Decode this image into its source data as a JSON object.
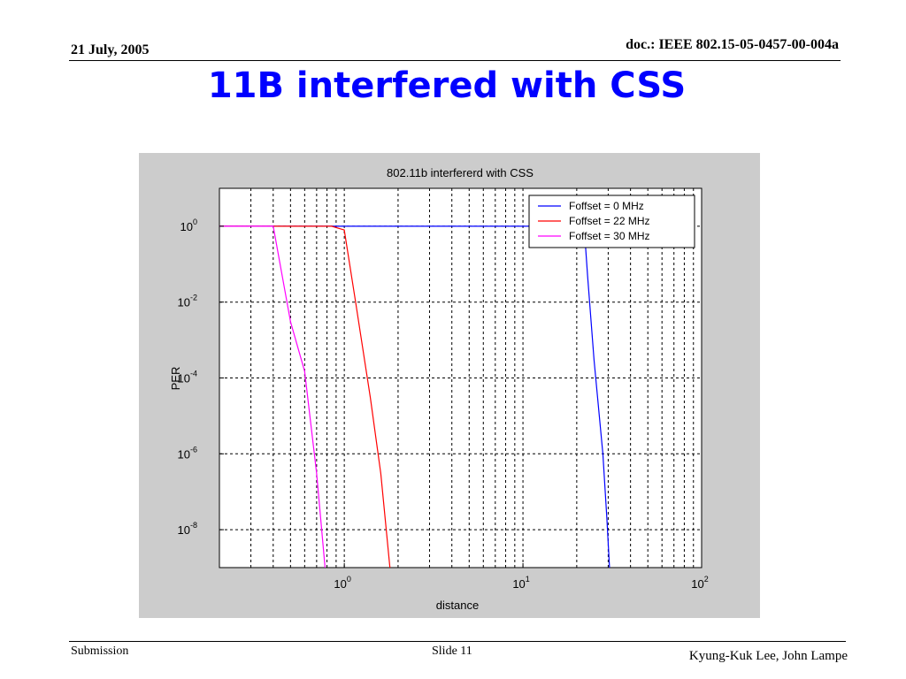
{
  "header": {
    "date": "21 July, 2005",
    "doc_id": "doc.: IEEE 802.15-05-0457-00-004a"
  },
  "slide_title": "11B interfered with CSS",
  "footer": {
    "left": "Submission",
    "center": "Slide 11",
    "right": "Kyung-Kuk Lee, John Lampe"
  },
  "colors": {
    "title": "#0000ff",
    "figure_background": "#cccccc",
    "axes_background": "#ffffff"
  },
  "chart_data": {
    "type": "line",
    "title": "802.11b interfererd with CSS",
    "xlabel": "distance",
    "ylabel": "PER",
    "xscale": "log",
    "yscale": "log",
    "xlim": [
      0.2,
      100
    ],
    "ylim": [
      1e-09,
      10
    ],
    "grid": true,
    "legend_position": "top-right",
    "x_ticks": [
      {
        "value": 1,
        "base": "10",
        "exp": "0"
      },
      {
        "value": 10,
        "base": "10",
        "exp": "1"
      },
      {
        "value": 100,
        "base": "10",
        "exp": "2"
      }
    ],
    "y_ticks": [
      {
        "value": 1,
        "base": "10",
        "exp": "0"
      },
      {
        "value": 0.01,
        "base": "10",
        "exp": "-2"
      },
      {
        "value": 0.0001,
        "base": "10",
        "exp": "-4"
      },
      {
        "value": 1e-06,
        "base": "10",
        "exp": "-6"
      },
      {
        "value": 1e-08,
        "base": "10",
        "exp": "-8"
      }
    ],
    "series": [
      {
        "name": "Foffset = 0 MHz",
        "color": "#0000ff",
        "points": [
          [
            0.2,
            1
          ],
          [
            22,
            1
          ],
          [
            23,
            0.05
          ],
          [
            25,
            0.0003
          ],
          [
            28,
            1e-06
          ],
          [
            29.5,
            2e-08
          ],
          [
            30.5,
            1e-09
          ]
        ]
      },
      {
        "name": "Foffset = 22 MHz",
        "color": "#ff0000",
        "points": [
          [
            0.2,
            1
          ],
          [
            0.85,
            1
          ],
          [
            1.0,
            0.8
          ],
          [
            1.15,
            0.012
          ],
          [
            1.4,
            3e-05
          ],
          [
            1.6,
            3e-07
          ],
          [
            1.8,
            1e-09
          ]
        ]
      },
      {
        "name": "Foffset = 30 MHz",
        "color": "#ff00ff",
        "points": [
          [
            0.2,
            1
          ],
          [
            0.4,
            1
          ],
          [
            0.5,
            0.003
          ],
          [
            0.6,
            0.00015
          ],
          [
            0.7,
            3e-07
          ],
          [
            0.78,
            1e-09
          ]
        ]
      }
    ]
  }
}
